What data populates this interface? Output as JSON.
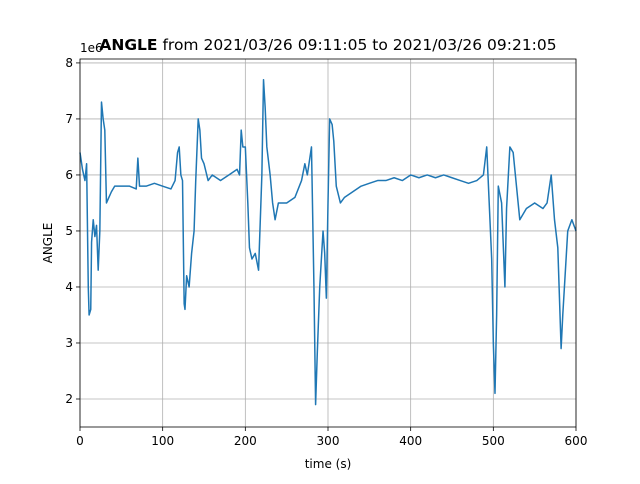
{
  "chart_data": {
    "type": "line",
    "title": "ANGLE",
    "subtitle": "from 2021/03/26 09:11:05 to 2021/03/26 09:21:05",
    "xlabel": "time (s)",
    "ylabel": "ANGLE",
    "y_offset_label": "1e6",
    "x": [
      0,
      3,
      6,
      8,
      10,
      11,
      13,
      14,
      16,
      18,
      20,
      22,
      24,
      26,
      28,
      30,
      32,
      35,
      38,
      42,
      50,
      60,
      68,
      70,
      72,
      80,
      90,
      100,
      110,
      115,
      118,
      120,
      122,
      124,
      126,
      127,
      129,
      132,
      135,
      138,
      140,
      143,
      145,
      147,
      150,
      155,
      160,
      170,
      180,
      190,
      193,
      195,
      197,
      200,
      203,
      205,
      208,
      212,
      216,
      220,
      222,
      224,
      226,
      230,
      233,
      236,
      240,
      250,
      260,
      268,
      272,
      275,
      280,
      283,
      285,
      287,
      290,
      294,
      296,
      298,
      300,
      302,
      305,
      307,
      310,
      315,
      320,
      330,
      340,
      350,
      360,
      370,
      380,
      390,
      400,
      410,
      420,
      430,
      440,
      450,
      460,
      470,
      480,
      488,
      492,
      495,
      498,
      500,
      502,
      504,
      506,
      510,
      514,
      516,
      520,
      524,
      528,
      532,
      540,
      550,
      560,
      565,
      570,
      574,
      578,
      580,
      582,
      584,
      586,
      590,
      595,
      600
    ],
    "series": [
      {
        "color": "#1f77b4",
        "values": [
          6.4,
          6.1,
          5.9,
          6.2,
          4.0,
          3.5,
          3.6,
          4.8,
          5.2,
          4.9,
          5.1,
          4.3,
          5.0,
          7.3,
          7.0,
          6.8,
          5.5,
          5.6,
          5.7,
          5.8,
          5.8,
          5.8,
          5.75,
          6.3,
          5.8,
          5.8,
          5.85,
          5.8,
          5.75,
          5.9,
          6.4,
          6.5,
          6.0,
          5.9,
          3.7,
          3.6,
          4.2,
          4.0,
          4.6,
          5.0,
          5.9,
          7.0,
          6.8,
          6.3,
          6.2,
          5.9,
          6.0,
          5.9,
          6.0,
          6.1,
          6.0,
          6.8,
          6.5,
          6.5,
          5.5,
          4.7,
          4.5,
          4.6,
          4.3,
          6.0,
          7.7,
          7.2,
          6.5,
          6.0,
          5.5,
          5.2,
          5.5,
          5.5,
          5.6,
          5.9,
          6.2,
          6.0,
          6.5,
          4.0,
          1.9,
          2.8,
          4.0,
          5.0,
          4.6,
          3.8,
          5.5,
          7.0,
          6.9,
          6.6,
          5.8,
          5.5,
          5.6,
          5.7,
          5.8,
          5.85,
          5.9,
          5.9,
          5.95,
          5.9,
          6.0,
          5.95,
          6.0,
          5.95,
          6.0,
          5.95,
          5.9,
          5.85,
          5.9,
          6.0,
          6.5,
          5.5,
          4.5,
          3.0,
          2.1,
          3.5,
          5.8,
          5.5,
          4.0,
          5.4,
          6.5,
          6.4,
          5.8,
          5.2,
          5.4,
          5.5,
          5.4,
          5.5,
          6.0,
          5.2,
          4.7,
          3.8,
          2.9,
          3.5,
          4.0,
          5.0,
          5.2,
          5.0
        ]
      }
    ],
    "xlim": [
      0,
      600
    ],
    "xticks": [
      0,
      100,
      200,
      300,
      400,
      500,
      600
    ],
    "ylim": [
      1.5,
      8.07
    ],
    "yticks": [
      2,
      3,
      4,
      5,
      6,
      7,
      8
    ],
    "grid": true
  }
}
